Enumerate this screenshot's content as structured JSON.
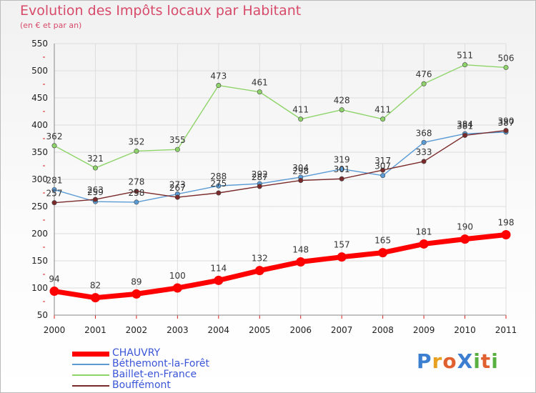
{
  "header": {
    "title": "Evolution des Impôts locaux par Habitant",
    "subtitle": "(en € et par an)"
  },
  "logo": {
    "text": "ProXiti",
    "letters": [
      {
        "ch": "P",
        "color": "#3c7fd0"
      },
      {
        "ch": "r",
        "color": "#e8a020"
      },
      {
        "ch": "o",
        "color": "#e06030"
      },
      {
        "ch": "X",
        "color": "#3c7fd0"
      },
      {
        "ch": "i",
        "color": "#58b040"
      },
      {
        "ch": "t",
        "color": "#e06030"
      },
      {
        "ch": "i",
        "color": "#58b040"
      }
    ]
  },
  "chart_data": {
    "type": "line",
    "title": "Evolution des Impôts locaux par Habitant",
    "subtitle": "(en € et par an)",
    "xlabel": "",
    "ylabel": "",
    "x": [
      "2000",
      "2001",
      "2002",
      "2003",
      "2004",
      "2005",
      "2006",
      "2007",
      "2008",
      "2009",
      "2010",
      "2011"
    ],
    "ylim": [
      50,
      550
    ],
    "yticks": [
      "50",
      "100",
      "150",
      "200",
      "250",
      "300",
      "350",
      "400",
      "450",
      "500",
      "550"
    ],
    "grid": true,
    "legend_position": "bottom-left",
    "series": [
      {
        "name": "CHAUVRY",
        "color": "#ff0000",
        "values": [
          94,
          82,
          89,
          100,
          114,
          132,
          148,
          157,
          165,
          181,
          190,
          198
        ],
        "labels": [
          "94",
          "82",
          "89",
          "100",
          "114",
          "132",
          "148",
          "157",
          "165",
          "181",
          "190",
          "198"
        ]
      },
      {
        "name": "Béthemont-la-Forêt",
        "color": "#5b9bd5",
        "values": [
          281,
          259,
          258,
          273,
          288,
          292,
          304,
          319,
          307,
          368,
          384,
          387
        ],
        "labels": [
          "281",
          "259",
          "258",
          "273",
          "288",
          "292",
          "304",
          "319",
          "307",
          "368",
          "384",
          "387"
        ]
      },
      {
        "name": "Baillet-en-France",
        "color": "#8fd46a",
        "values": [
          362,
          321,
          352,
          355,
          473,
          461,
          411,
          428,
          411,
          476,
          511,
          506
        ],
        "labels": [
          "362",
          "321",
          "352",
          "355",
          "473",
          "461",
          "411",
          "428",
          "411",
          "476",
          "511",
          "506"
        ]
      },
      {
        "name": "Bouffémont",
        "color": "#7a2a2a",
        "values": [
          257,
          263,
          278,
          267,
          275,
          287,
          298,
          301,
          317,
          333,
          381,
          390
        ],
        "labels": [
          "257",
          "263",
          "278",
          "267",
          "275",
          "287",
          "298",
          "301",
          "317",
          "333",
          "381",
          "390"
        ]
      }
    ]
  }
}
